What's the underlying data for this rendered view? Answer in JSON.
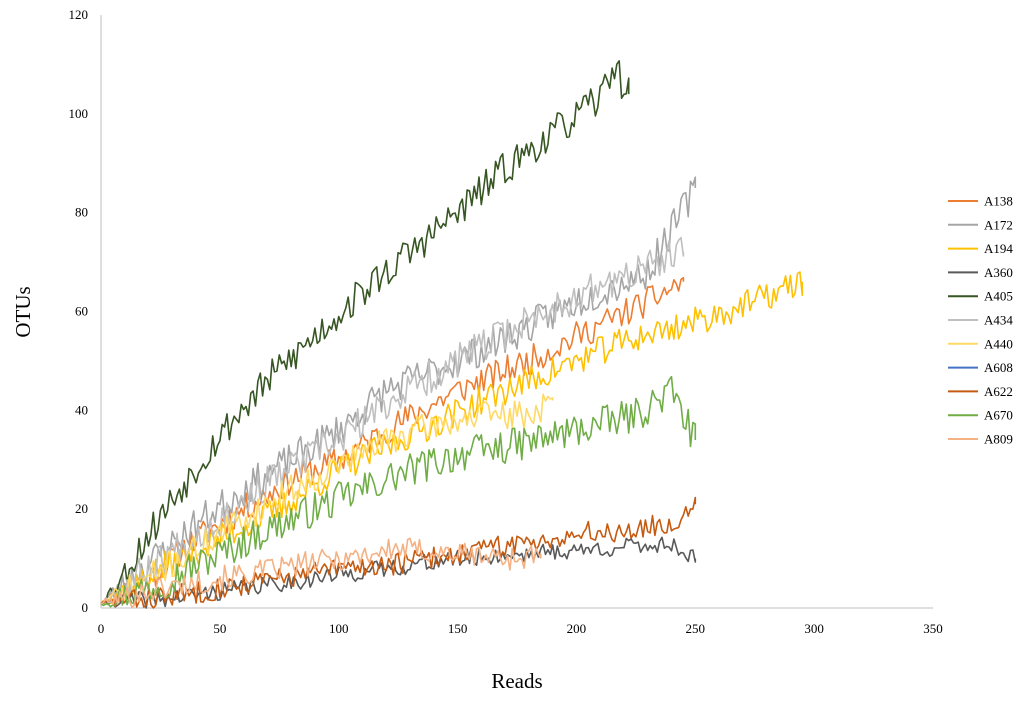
{
  "chart_data": {
    "type": "line",
    "title": "",
    "xlabel": "Reads",
    "ylabel": "OTUs",
    "xlim": [
      0,
      350
    ],
    "ylim": [
      0,
      120
    ],
    "xticks": [
      0,
      50,
      100,
      150,
      200,
      250,
      300,
      350
    ],
    "yticks": [
      0,
      20,
      40,
      60,
      80,
      100,
      120
    ],
    "grid": false,
    "legend_position": "right",
    "series": [
      {
        "name": "A138",
        "color": "#ED7D31",
        "knots": [
          [
            0,
            1
          ],
          [
            20,
            6
          ],
          [
            40,
            14
          ],
          [
            60,
            20
          ],
          [
            80,
            26
          ],
          [
            100,
            30
          ],
          [
            120,
            36
          ],
          [
            150,
            44
          ],
          [
            180,
            50
          ],
          [
            200,
            55
          ],
          [
            230,
            62
          ],
          [
            245,
            66
          ]
        ],
        "noise": 3,
        "seed": 11
      },
      {
        "name": "A172",
        "color": "#A5A5A5",
        "knots": [
          [
            0,
            1
          ],
          [
            20,
            9
          ],
          [
            40,
            17
          ],
          [
            60,
            24
          ],
          [
            80,
            30
          ],
          [
            100,
            36
          ],
          [
            120,
            44
          ],
          [
            150,
            50
          ],
          [
            180,
            57
          ],
          [
            200,
            62
          ],
          [
            230,
            68
          ],
          [
            250,
            85
          ]
        ],
        "noise": 3.5,
        "seed": 23
      },
      {
        "name": "A194",
        "color": "#FFC000",
        "knots": [
          [
            0,
            1
          ],
          [
            25,
            8
          ],
          [
            50,
            14
          ],
          [
            75,
            20
          ],
          [
            100,
            28
          ],
          [
            130,
            35
          ],
          [
            160,
            42
          ],
          [
            190,
            48
          ],
          [
            220,
            54
          ],
          [
            250,
            58
          ],
          [
            275,
            62
          ],
          [
            295,
            66
          ]
        ],
        "noise": 3,
        "seed": 37
      },
      {
        "name": "A360",
        "color": "#595959",
        "knots": [
          [
            0,
            1
          ],
          [
            30,
            2
          ],
          [
            60,
            4
          ],
          [
            90,
            6
          ],
          [
            120,
            8
          ],
          [
            150,
            10
          ],
          [
            180,
            11
          ],
          [
            210,
            12
          ],
          [
            240,
            13
          ],
          [
            250,
            10
          ]
        ],
        "noise": 1.8,
        "seed": 41
      },
      {
        "name": "A405",
        "color": "#375623",
        "knots": [
          [
            0,
            1
          ],
          [
            10,
            7
          ],
          [
            20,
            15
          ],
          [
            30,
            22
          ],
          [
            50,
            35
          ],
          [
            70,
            46
          ],
          [
            90,
            55
          ],
          [
            110,
            64
          ],
          [
            130,
            72
          ],
          [
            150,
            80
          ],
          [
            170,
            89
          ],
          [
            190,
            96
          ],
          [
            210,
            103
          ],
          [
            215,
            110
          ],
          [
            222,
            104
          ]
        ],
        "noise": 3.5,
        "seed": 53
      },
      {
        "name": "A434",
        "color": "#BFBFBF",
        "knots": [
          [
            0,
            1
          ],
          [
            25,
            10
          ],
          [
            50,
            18
          ],
          [
            75,
            27
          ],
          [
            100,
            34
          ],
          [
            125,
            43
          ],
          [
            150,
            50
          ],
          [
            175,
            57
          ],
          [
            200,
            63
          ],
          [
            225,
            68
          ],
          [
            245,
            72
          ]
        ],
        "noise": 3.5,
        "seed": 67
      },
      {
        "name": "A440",
        "color": "#FFD966",
        "knots": [
          [
            0,
            1
          ],
          [
            20,
            6
          ],
          [
            40,
            12
          ],
          [
            60,
            18
          ],
          [
            80,
            24
          ],
          [
            100,
            29
          ],
          [
            120,
            34
          ],
          [
            140,
            37
          ],
          [
            160,
            39
          ],
          [
            180,
            39
          ],
          [
            190,
            42
          ]
        ],
        "noise": 3,
        "seed": 71
      },
      {
        "name": "A608",
        "color": "#4472C4",
        "knots": [],
        "noise": 0,
        "seed": 79
      },
      {
        "name": "A622",
        "color": "#C55A11",
        "knots": [
          [
            0,
            1
          ],
          [
            25,
            2
          ],
          [
            50,
            4
          ],
          [
            75,
            6
          ],
          [
            100,
            8
          ],
          [
            125,
            9
          ],
          [
            150,
            11
          ],
          [
            175,
            13
          ],
          [
            200,
            15
          ],
          [
            225,
            16
          ],
          [
            240,
            17
          ],
          [
            250,
            21
          ]
        ],
        "noise": 2.3,
        "seed": 83
      },
      {
        "name": "A670",
        "color": "#70AD47",
        "knots": [
          [
            0,
            1
          ],
          [
            25,
            5
          ],
          [
            50,
            11
          ],
          [
            75,
            17
          ],
          [
            100,
            22
          ],
          [
            125,
            27
          ],
          [
            150,
            31
          ],
          [
            175,
            33
          ],
          [
            200,
            36
          ],
          [
            225,
            39
          ],
          [
            240,
            44
          ],
          [
            250,
            34
          ]
        ],
        "noise": 3.5,
        "seed": 97
      },
      {
        "name": "A809",
        "color": "#F4B183",
        "knots": [
          [
            0,
            1
          ],
          [
            25,
            4
          ],
          [
            50,
            6
          ],
          [
            75,
            8
          ],
          [
            100,
            10
          ],
          [
            125,
            12
          ],
          [
            150,
            11
          ],
          [
            175,
            10
          ],
          [
            185,
            11
          ]
        ],
        "noise": 2.5,
        "seed": 101
      }
    ]
  }
}
